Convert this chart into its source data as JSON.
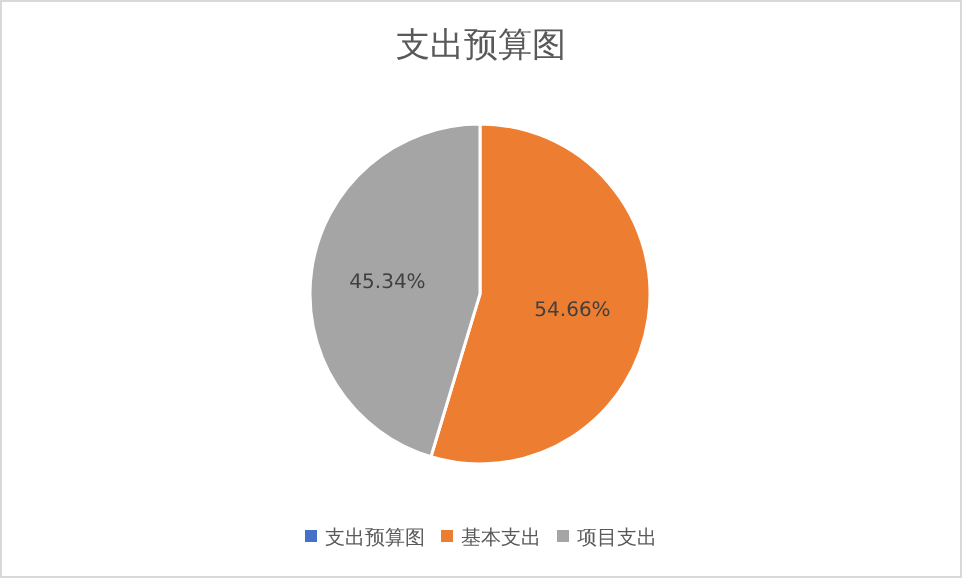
{
  "chart_data": {
    "type": "pie",
    "title": "支出预算图",
    "categories": [
      "支出预算图",
      "基本支出",
      "项目支出"
    ],
    "values": [
      0,
      54.66,
      45.34
    ],
    "colors": [
      "#4472c4",
      "#ed7d31",
      "#a5a5a5"
    ],
    "value_labels": [
      null,
      "54.66%",
      "45.34%"
    ],
    "legend": "bottom"
  }
}
